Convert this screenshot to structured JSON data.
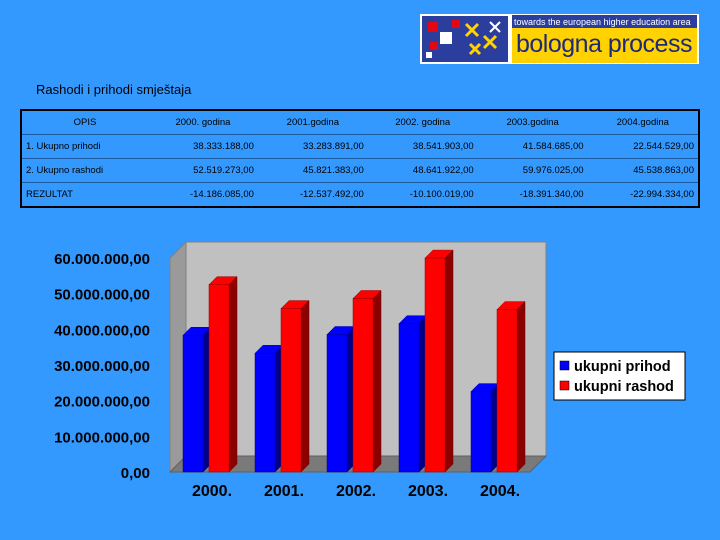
{
  "logo": {
    "tagline": "towards the european higher education area",
    "text": "bologna process"
  },
  "title": "Rashodi i prihodi smještaja",
  "table": {
    "headers": [
      "OPIS",
      "2000. godina",
      "2001.godina",
      "2002. godina",
      "2003.godina",
      "2004.godina"
    ],
    "rows": [
      [
        "1. Ukupno prihodi",
        "38.333.188,00",
        "33.283.891,00",
        "38.541.903,00",
        "41.584.685,00",
        "22.544.529,00"
      ],
      [
        "2. Ukupno rashodi",
        "52.519.273,00",
        "45.821.383,00",
        "48.641.922,00",
        "59.976.025,00",
        "45.538.863,00"
      ],
      [
        "REZULTAT",
        "-14.186.085,00",
        "-12.537.492,00",
        "-10.100.019,00",
        "-18.391.340,00",
        "-22.994.334,00"
      ]
    ]
  },
  "chart_data": {
    "type": "bar",
    "categories": [
      "2000.",
      "2001.",
      "2002.",
      "2003.",
      "2004."
    ],
    "series": [
      {
        "name": "ukupni prihod",
        "color": "#0000ff",
        "values": [
          38333188,
          33283891,
          38541903,
          41584685,
          22544529
        ]
      },
      {
        "name": "ukupni rashod",
        "color": "#ff0000",
        "values": [
          52519273,
          45821383,
          48641922,
          59976025,
          45538863
        ]
      }
    ],
    "ylim": [
      0,
      60000000
    ],
    "yticks": [
      "0,00",
      "10.000.000,00",
      "20.000.000,00",
      "30.000.000,00",
      "40.000.000,00",
      "50.000.000,00",
      "60.000.000,00"
    ],
    "grid": false,
    "legend": "right",
    "style": "3d"
  }
}
